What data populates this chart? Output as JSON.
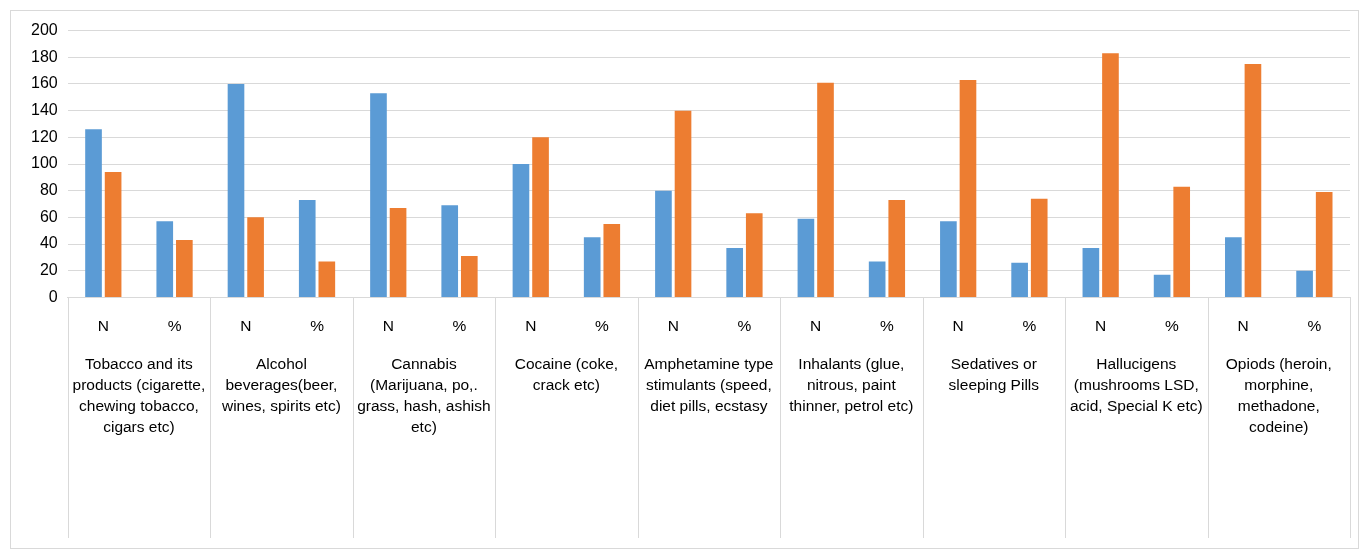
{
  "chart_data": {
    "type": "bar",
    "categories": [
      "N",
      "%",
      "N",
      "%",
      "N",
      "%",
      "N",
      "%",
      "N",
      "%",
      "N",
      "%",
      "N",
      "%",
      "N",
      "%",
      "N",
      "%"
    ],
    "series": [
      {
        "color": "#5b9bd5",
        "values": [
          126,
          57,
          160,
          73,
          153,
          69,
          100,
          45,
          80,
          37,
          59,
          27,
          57,
          26,
          37,
          17,
          45,
          20
        ]
      },
      {
        "color": "#ed7d31",
        "values": [
          94,
          43,
          60,
          27,
          67,
          31,
          120,
          55,
          140,
          63,
          161,
          73,
          163,
          74,
          183,
          83,
          175,
          79
        ]
      }
    ],
    "ylim": [
      0,
      200
    ],
    "yticks": [
      0,
      20,
      40,
      60,
      80,
      100,
      120,
      140,
      160,
      180,
      200
    ],
    "grid": "y",
    "legend": false,
    "annotations": [
      "Tobacco and its products (cigarette, chewing tobacco, cigars etc)",
      "Alcohol beverages(beer, wines, spirits etc)",
      "Cannabis (Marijuana, po,. grass, hash, ashish etc)",
      "Cocaine (coke, crack etc)",
      "Amphetamine type stimulants (speed, diet pills, ecstasy",
      "Inhalants (glue, nitrous, paint thinner, petrol etc)",
      "Sedatives or sleeping Pills",
      "Hallucigens (mushrooms LSD, acid, Special K etc)",
      "Opiods (heroin, morphine, methadone, codeine)"
    ]
  }
}
